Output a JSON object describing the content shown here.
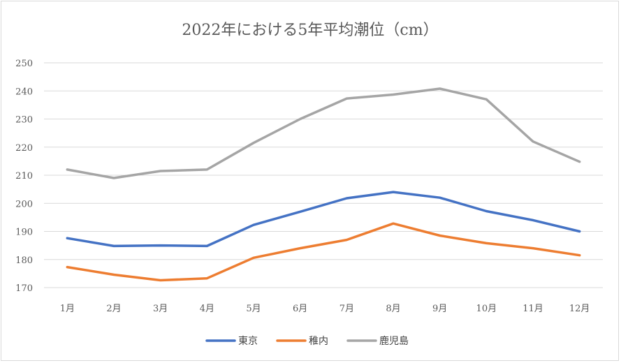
{
  "chart_data": {
    "type": "line",
    "title": "2022年における5年平均潮位（cm）",
    "categories": [
      "1月",
      "2月",
      "3月",
      "4月",
      "5月",
      "6月",
      "7月",
      "8月",
      "9月",
      "10月",
      "11月",
      "12月"
    ],
    "ylim": [
      170,
      250
    ],
    "yticks": [
      170,
      180,
      190,
      200,
      210,
      220,
      230,
      240,
      250
    ],
    "grid": true,
    "legend_position": "bottom",
    "series": [
      {
        "name": "東京",
        "color": "#4472c4",
        "values": [
          187.6,
          184.8,
          185.0,
          184.8,
          192.3,
          197.0,
          201.8,
          204.0,
          202.0,
          197.2,
          194.0,
          190.0
        ]
      },
      {
        "name": "稚内",
        "color": "#ed7d31",
        "values": [
          177.3,
          174.6,
          172.6,
          173.3,
          180.6,
          184.0,
          187.0,
          192.8,
          188.5,
          185.8,
          184.0,
          181.5
        ]
      },
      {
        "name": "鹿児島",
        "color": "#a5a5a5",
        "values": [
          212.0,
          209.0,
          211.5,
          212.0,
          221.5,
          230.0,
          237.3,
          238.7,
          240.8,
          237.0,
          222.0,
          214.8
        ]
      }
    ]
  }
}
